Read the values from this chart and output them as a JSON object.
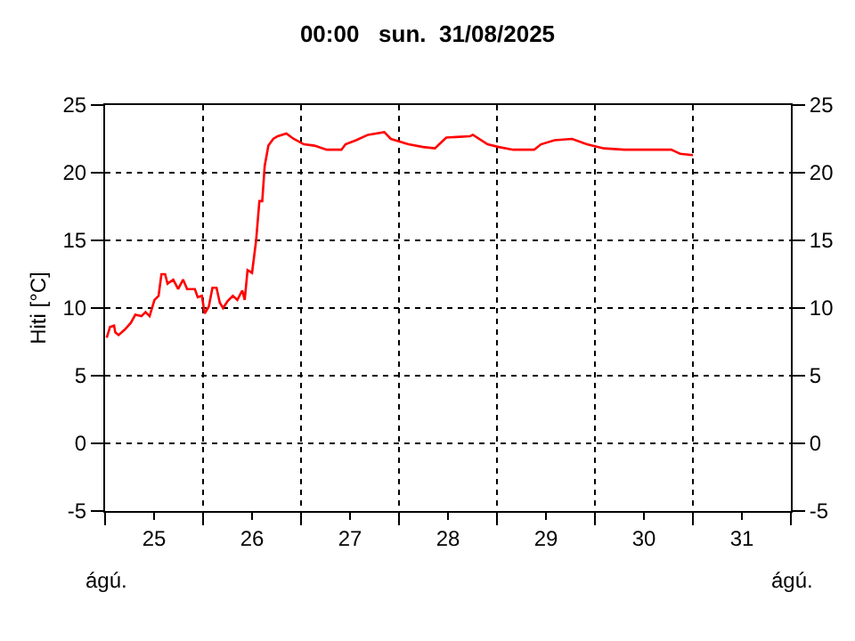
{
  "chart_data": {
    "type": "line",
    "title": "00:00   sun.  31/08/2025",
    "ylabel": "Hiti [°C]",
    "annotations": [
      "ágú.",
      "ágú."
    ],
    "x": [
      "2025-08-25T00:24",
      "2025-08-25T01:12",
      "2025-08-25T02:12",
      "2025-08-25T02:30",
      "2025-08-25T03:18",
      "2025-08-25T04:48",
      "2025-08-25T06:18",
      "2025-08-25T07:24",
      "2025-08-25T08:54",
      "2025-08-25T09:54",
      "2025-08-25T10:54",
      "2025-08-25T12:06",
      "2025-08-25T13:06",
      "2025-08-25T13:48",
      "2025-08-25T14:42",
      "2025-08-25T15:18",
      "2025-08-25T16:42",
      "2025-08-25T17:54",
      "2025-08-25T19:06",
      "2025-08-25T20:06",
      "2025-08-25T22:00",
      "2025-08-25T22:42",
      "2025-08-25T23:42",
      "2025-08-26T00:24",
      "2025-08-26T01:24",
      "2025-08-26T02:18",
      "2025-08-26T03:18",
      "2025-08-26T04:06",
      "2025-08-26T04:54",
      "2025-08-26T06:00",
      "2025-08-26T07:18",
      "2025-08-26T08:24",
      "2025-08-26T09:36",
      "2025-08-26T10:12",
      "2025-08-26T10:54",
      "2025-08-26T12:00",
      "2025-08-26T13:00",
      "2025-08-26T13:48",
      "2025-08-26T14:30",
      "2025-08-26T15:06",
      "2025-08-26T16:00",
      "2025-08-26T17:12",
      "2025-08-26T18:18",
      "2025-08-26T20:24",
      "2025-08-26T22:12",
      "2025-08-27T00:42",
      "2025-08-27T03:18",
      "2025-08-27T06:18",
      "2025-08-27T09:54",
      "2025-08-27T10:54",
      "2025-08-27T13:30",
      "2025-08-27T16:24",
      "2025-08-27T20:24",
      "2025-08-27T22:00",
      "2025-08-28T02:18",
      "2025-08-28T05:54",
      "2025-08-28T08:48",
      "2025-08-28T10:12",
      "2025-08-28T11:36",
      "2025-08-28T17:24",
      "2025-08-28T18:06",
      "2025-08-28T21:42",
      "2025-08-29T00:24",
      "2025-08-29T04:00",
      "2025-08-29T09:06",
      "2025-08-29T10:48",
      "2025-08-29T14:06",
      "2025-08-29T18:24",
      "2025-08-29T22:00",
      "2025-08-30T02:12",
      "2025-08-30T07:12",
      "2025-08-30T18:42",
      "2025-08-30T20:54",
      "2025-08-31T00:00"
    ],
    "series": [
      {
        "color": "#ff0000",
        "values": [
          7.8,
          8.6,
          8.7,
          8.2,
          8.0,
          8.4,
          8.9,
          9.5,
          9.4,
          9.7,
          9.4,
          10.6,
          10.9,
          12.5,
          12.5,
          11.8,
          12.1,
          11.4,
          12.1,
          11.4,
          11.4,
          10.8,
          10.9,
          9.6,
          10.1,
          11.5,
          11.5,
          10.4,
          10.0,
          10.5,
          10.9,
          10.6,
          11.3,
          10.6,
          12.8,
          12.6,
          15.0,
          17.9,
          17.9,
          20.5,
          22.0,
          22.5,
          22.7,
          22.9,
          22.5,
          22.1,
          22.0,
          21.7,
          21.7,
          22.1,
          22.4,
          22.8,
          23.0,
          22.5,
          22.1,
          21.9,
          21.8,
          22.2,
          22.6,
          22.7,
          22.8,
          22.1,
          21.9,
          21.7,
          21.7,
          22.1,
          22.4,
          22.5,
          22.1,
          21.8,
          21.7,
          21.7,
          21.4,
          21.3
        ]
      }
    ],
    "xlim": [
      "2025-08-25T00:00",
      "2025-09-01T00:00"
    ],
    "xticks": [
      {
        "value": "2025-08-25T00:00",
        "label": null
      },
      {
        "value": "2025-08-25T12:00",
        "label": "25"
      },
      {
        "value": "2025-08-26T00:00",
        "label": null
      },
      {
        "value": "2025-08-26T12:00",
        "label": "26"
      },
      {
        "value": "2025-08-27T00:00",
        "label": null
      },
      {
        "value": "2025-08-27T12:00",
        "label": "27"
      },
      {
        "value": "2025-08-28T00:00",
        "label": null
      },
      {
        "value": "2025-08-28T12:00",
        "label": "28"
      },
      {
        "value": "2025-08-29T00:00",
        "label": null
      },
      {
        "value": "2025-08-29T12:00",
        "label": "29"
      },
      {
        "value": "2025-08-30T00:00",
        "label": null
      },
      {
        "value": "2025-08-30T12:00",
        "label": "30"
      },
      {
        "value": "2025-08-31T00:00",
        "label": null
      },
      {
        "value": "2025-08-31T12:00",
        "label": "31"
      },
      {
        "value": "2025-09-01T00:00",
        "label": null
      }
    ],
    "ylim": [
      -5,
      25
    ],
    "yticks": [
      -5,
      0,
      5,
      10,
      15,
      20,
      25
    ],
    "y2lim": [
      -5,
      25
    ],
    "y2ticks": [
      -5,
      0,
      5,
      10,
      15,
      20,
      25
    ],
    "grid": true,
    "legend": false
  }
}
